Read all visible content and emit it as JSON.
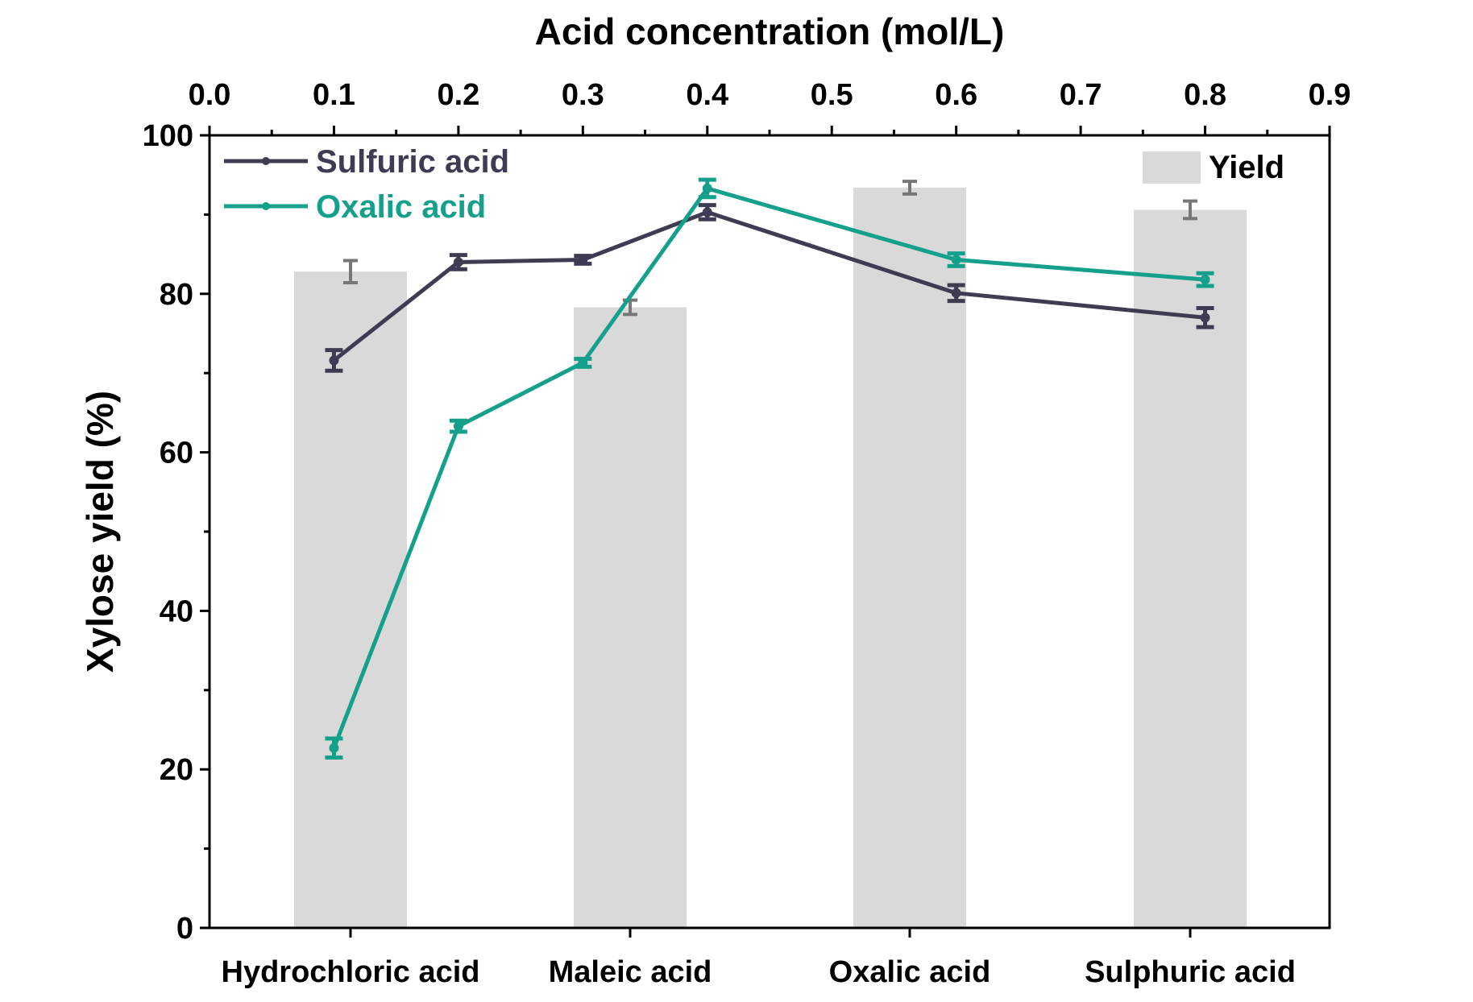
{
  "chart_data": {
    "type": "bar+line",
    "title": "",
    "top_axis": {
      "label": "Acid concentration (mol/L)",
      "range": [
        0.0,
        0.9
      ],
      "ticks": [
        "0.0",
        "0.1",
        "0.2",
        "0.3",
        "0.4",
        "0.5",
        "0.6",
        "0.7",
        "0.8",
        "0.9"
      ]
    },
    "y_axis": {
      "label": "Xylose yield (%)",
      "range": [
        0,
        100
      ],
      "ticks": [
        "0",
        "20",
        "40",
        "60",
        "80",
        "100"
      ]
    },
    "bottom_axis": {
      "categories": [
        "Hydrochloric acid",
        "Maleic acid",
        "Oxalic acid",
        "Sulphuric acid"
      ]
    },
    "bar_series": {
      "name": "Yield",
      "color": "#d9d9d9",
      "values": [
        82.8,
        78.3,
        93.4,
        90.6
      ],
      "errors": [
        1.4,
        0.9,
        0.8,
        1.1
      ]
    },
    "line_series": [
      {
        "name": "Sulfuric acid",
        "color": "#3d3c52",
        "x": [
          0.1,
          0.2,
          0.3,
          0.4,
          0.6,
          0.8
        ],
        "y": [
          71.6,
          84.0,
          84.3,
          90.3,
          80.1,
          77.0
        ],
        "errors": [
          1.3,
          0.9,
          0.5,
          0.9,
          1.0,
          1.2
        ]
      },
      {
        "name": "Oxalic acid",
        "color": "#14a08a",
        "x": [
          0.1,
          0.2,
          0.3,
          0.4,
          0.6,
          0.8
        ],
        "y": [
          22.7,
          63.3,
          71.3,
          93.3,
          84.3,
          81.8
        ],
        "errors": [
          1.2,
          0.7,
          0.5,
          1.1,
          0.8,
          0.8
        ]
      }
    ],
    "legend": {
      "lines_position": "top-left",
      "bars_position": "top-right"
    },
    "grid": false
  }
}
